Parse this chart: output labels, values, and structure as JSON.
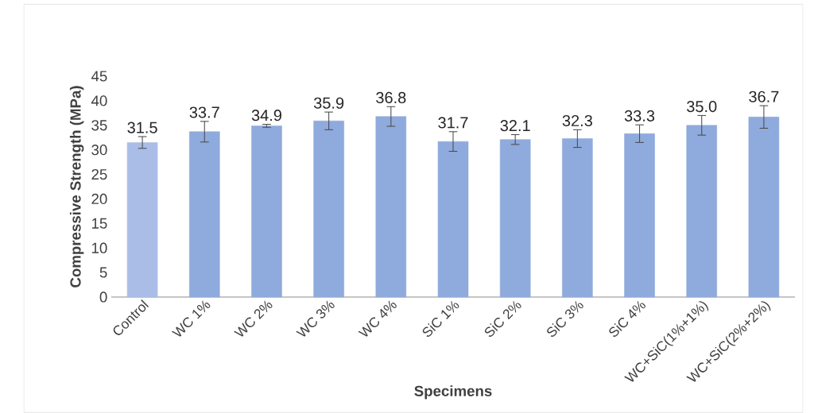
{
  "chart_data": {
    "type": "bar",
    "xlabel": "Specimens",
    "ylabel": "Compressive Strength (MPa)",
    "categories": [
      "Control",
      "WC 1%",
      "WC 2%",
      "WC 3%",
      "WC 4%",
      "SiC 1%",
      "SiC 2%",
      "SiC 3%",
      "SiC 4%",
      "WC+SiC(1%+1%)",
      "WC+SiC(2%+2%)"
    ],
    "values": [
      31.5,
      33.7,
      34.9,
      35.9,
      36.8,
      31.7,
      32.1,
      32.3,
      33.3,
      35.0,
      36.7
    ],
    "value_labels": [
      "31.5",
      "33.7",
      "34.9",
      "35.9",
      "36.8",
      "31.7",
      "32.1",
      "32.3",
      "33.3",
      "35.0",
      "36.7"
    ],
    "errors": [
      1.2,
      2.1,
      0.3,
      1.8,
      2.0,
      2.0,
      1.0,
      1.8,
      1.8,
      2.0,
      2.3
    ],
    "colors": [
      "#a9bde6",
      "#8faadc",
      "#8faadc",
      "#8faadc",
      "#8faadc",
      "#8faadc",
      "#8faadc",
      "#8faadc",
      "#8faadc",
      "#8faadc",
      "#8faadc"
    ],
    "ylim": [
      0,
      45
    ],
    "yticks": [
      0,
      5,
      10,
      15,
      20,
      25,
      30,
      35,
      40,
      45
    ]
  }
}
